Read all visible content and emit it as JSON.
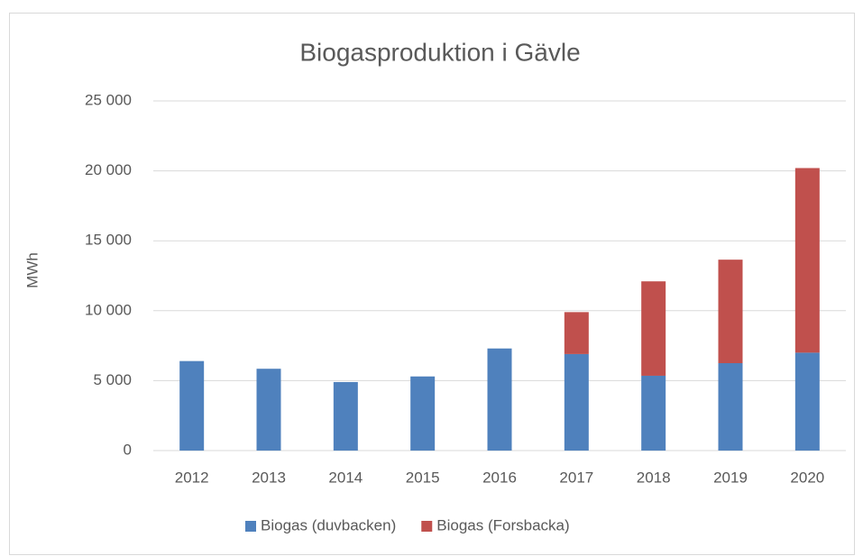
{
  "chart_data": {
    "type": "bar",
    "stacked": true,
    "title": "Biogasproduktion i Gävle",
    "y_label": "MWh",
    "categories": [
      "2012",
      "2013",
      "2014",
      "2015",
      "2016",
      "2017",
      "2018",
      "2019",
      "2020"
    ],
    "series": [
      {
        "name": "Biogas (duvbacken)",
        "color": "#4f81bd",
        "values": [
          6400,
          5850,
          4900,
          5300,
          7300,
          6900,
          5350,
          6250,
          7000
        ]
      },
      {
        "name": "Biogas (Forsbacka)",
        "color": "#c0504d",
        "values": [
          null,
          null,
          null,
          null,
          null,
          3000,
          6750,
          7400,
          13200
        ]
      }
    ],
    "ylim": [
      0,
      25000
    ],
    "yticks": [
      0,
      {
        "value": 5000,
        "label": "5 000"
      },
      {
        "value": 10000,
        "label": "10 000"
      },
      {
        "value": 15000,
        "label": "15 000"
      },
      {
        "value": 20000,
        "label": "20 000"
      },
      {
        "value": 25000,
        "label": "25 000"
      }
    ],
    "grid": true,
    "legend": "bottom"
  }
}
